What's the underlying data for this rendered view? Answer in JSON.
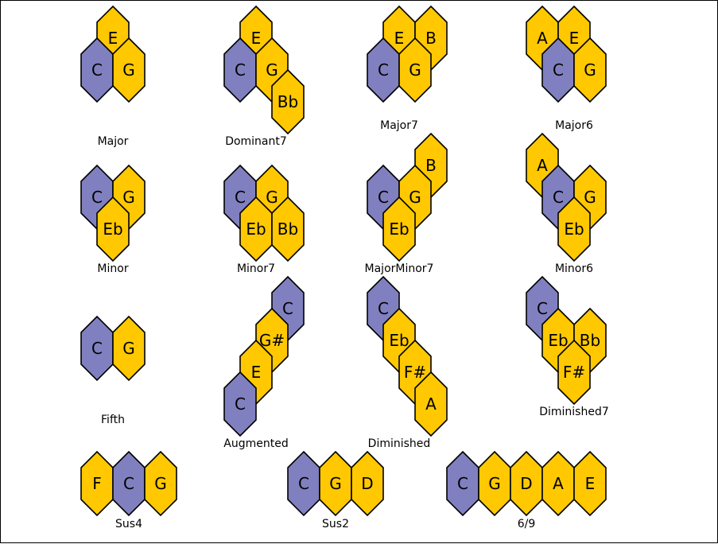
{
  "colors": {
    "root": "#8080c0",
    "note": "#ffc800",
    "stroke": "#000000"
  },
  "chords": [
    {
      "name": "Major",
      "notes": [
        {
          "label": "E",
          "root": false
        },
        {
          "label": "C",
          "root": true
        },
        {
          "label": "G",
          "root": false
        }
      ]
    },
    {
      "name": "Dominant7",
      "notes": [
        {
          "label": "E",
          "root": false
        },
        {
          "label": "C",
          "root": true
        },
        {
          "label": "G",
          "root": false
        },
        {
          "label": "Bb",
          "root": false
        }
      ]
    },
    {
      "name": "Major7",
      "notes": [
        {
          "label": "E",
          "root": false
        },
        {
          "label": "B",
          "root": false
        },
        {
          "label": "C",
          "root": true
        },
        {
          "label": "G",
          "root": false
        }
      ]
    },
    {
      "name": "Major6",
      "notes": [
        {
          "label": "A",
          "root": false
        },
        {
          "label": "E",
          "root": false
        },
        {
          "label": "C",
          "root": true
        },
        {
          "label": "G",
          "root": false
        }
      ]
    },
    {
      "name": "Minor",
      "notes": [
        {
          "label": "C",
          "root": true
        },
        {
          "label": "G",
          "root": false
        },
        {
          "label": "Eb",
          "root": false
        }
      ]
    },
    {
      "name": "Minor7",
      "notes": [
        {
          "label": "C",
          "root": true
        },
        {
          "label": "G",
          "root": false
        },
        {
          "label": "Eb",
          "root": false
        },
        {
          "label": "Bb",
          "root": false
        }
      ]
    },
    {
      "name": "MajorMinor7",
      "notes": [
        {
          "label": "B",
          "root": false
        },
        {
          "label": "C",
          "root": true
        },
        {
          "label": "G",
          "root": false
        },
        {
          "label": "Eb",
          "root": false
        }
      ]
    },
    {
      "name": "Minor6",
      "notes": [
        {
          "label": "A",
          "root": false
        },
        {
          "label": "C",
          "root": true
        },
        {
          "label": "G",
          "root": false
        },
        {
          "label": "Eb",
          "root": false
        }
      ]
    },
    {
      "name": "Fifth",
      "notes": [
        {
          "label": "C",
          "root": true
        },
        {
          "label": "G",
          "root": false
        }
      ]
    },
    {
      "name": "Augmented",
      "notes": [
        {
          "label": "C",
          "root": true
        },
        {
          "label": "G#",
          "root": false
        },
        {
          "label": "E",
          "root": false
        },
        {
          "label": "C",
          "root": true
        }
      ]
    },
    {
      "name": "Diminished",
      "notes": [
        {
          "label": "C",
          "root": true
        },
        {
          "label": "Eb",
          "root": false
        },
        {
          "label": "F#",
          "root": false
        },
        {
          "label": "A",
          "root": false
        }
      ]
    },
    {
      "name": "Diminished7",
      "notes": [
        {
          "label": "C",
          "root": true
        },
        {
          "label": "Eb",
          "root": false
        },
        {
          "label": "Bb",
          "root": false
        },
        {
          "label": "F#",
          "root": false
        }
      ]
    },
    {
      "name": "Sus4",
      "notes": [
        {
          "label": "F",
          "root": false
        },
        {
          "label": "C",
          "root": true
        },
        {
          "label": "G",
          "root": false
        }
      ]
    },
    {
      "name": "Sus2",
      "notes": [
        {
          "label": "C",
          "root": true
        },
        {
          "label": "G",
          "root": false
        },
        {
          "label": "D",
          "root": false
        }
      ]
    },
    {
      "name": "6/9",
      "notes": [
        {
          "label": "C",
          "root": true
        },
        {
          "label": "G",
          "root": false
        },
        {
          "label": "D",
          "root": false
        },
        {
          "label": "A",
          "root": false
        },
        {
          "label": "E",
          "root": false
        }
      ]
    }
  ]
}
